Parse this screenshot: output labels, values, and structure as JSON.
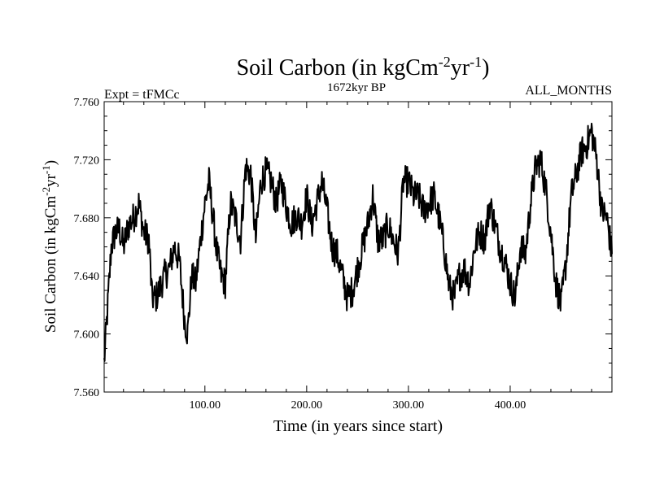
{
  "chart_data": {
    "type": "line",
    "title": {
      "main": "Soil Carbon (in kgCm",
      "sup1": "-2",
      "mid": "yr",
      "sup2": "-1",
      "end": ")"
    },
    "subtitle_left": "Expt = tFMCc",
    "subtitle_center": "1672kyr BP",
    "subtitle_right": "ALL_MONTHS",
    "xlabel": "Time (in years since start)",
    "ylabel": {
      "main": "Soil Carbon (in kgCm",
      "sup1": "-2",
      "mid": "yr",
      "sup2": "-1",
      "end": ")"
    },
    "xlim": [
      1,
      500
    ],
    "ylim": [
      7.56,
      7.76
    ],
    "xticks": [
      100,
      200,
      300,
      400
    ],
    "xtick_labels": [
      "100.00",
      "200.00",
      "300.00",
      "400.00"
    ],
    "yticks": [
      7.56,
      7.6,
      7.64,
      7.68,
      7.72,
      7.76
    ],
    "ytick_labels": [
      "7.560",
      "7.600",
      "7.640",
      "7.680",
      "7.720",
      "7.760"
    ],
    "series": [
      {
        "name": "Soil Carbon",
        "x": [
          1,
          5,
          8,
          12,
          16,
          20,
          25,
          30,
          35,
          40,
          45,
          48,
          52,
          56,
          60,
          65,
          70,
          75,
          80,
          83,
          87,
          91,
          95,
          100,
          104,
          108,
          112,
          116,
          120,
          125,
          130,
          135,
          140,
          145,
          150,
          155,
          160,
          165,
          170,
          175,
          180,
          185,
          190,
          195,
          200,
          205,
          210,
          215,
          220,
          225,
          230,
          235,
          240,
          245,
          250,
          255,
          260,
          265,
          270,
          275,
          280,
          285,
          290,
          295,
          300,
          305,
          310,
          315,
          320,
          325,
          330,
          335,
          340,
          345,
          350,
          355,
          360,
          365,
          370,
          375,
          380,
          385,
          390,
          395,
          400,
          405,
          410,
          415,
          420,
          425,
          430,
          435,
          440,
          445,
          450,
          455,
          460,
          465,
          470,
          475,
          480,
          485,
          490,
          495,
          500
        ],
        "values": [
          7.58,
          7.625,
          7.66,
          7.67,
          7.672,
          7.66,
          7.675,
          7.68,
          7.69,
          7.67,
          7.665,
          7.625,
          7.625,
          7.632,
          7.64,
          7.645,
          7.66,
          7.65,
          7.61,
          7.6,
          7.64,
          7.635,
          7.66,
          7.69,
          7.705,
          7.68,
          7.655,
          7.64,
          7.635,
          7.69,
          7.68,
          7.665,
          7.715,
          7.71,
          7.665,
          7.705,
          7.712,
          7.705,
          7.69,
          7.705,
          7.688,
          7.676,
          7.682,
          7.676,
          7.695,
          7.675,
          7.69,
          7.705,
          7.685,
          7.66,
          7.655,
          7.64,
          7.625,
          7.63,
          7.645,
          7.66,
          7.675,
          7.695,
          7.665,
          7.665,
          7.675,
          7.665,
          7.655,
          7.705,
          7.705,
          7.695,
          7.695,
          7.685,
          7.69,
          7.695,
          7.68,
          7.66,
          7.632,
          7.625,
          7.64,
          7.645,
          7.635,
          7.66,
          7.67,
          7.665,
          7.69,
          7.675,
          7.66,
          7.65,
          7.635,
          7.625,
          7.66,
          7.655,
          7.69,
          7.715,
          7.72,
          7.7,
          7.67,
          7.635,
          7.62,
          7.65,
          7.695,
          7.71,
          7.725,
          7.73,
          7.74,
          7.72,
          7.685,
          7.68,
          7.655
        ]
      }
    ],
    "grid": false
  }
}
